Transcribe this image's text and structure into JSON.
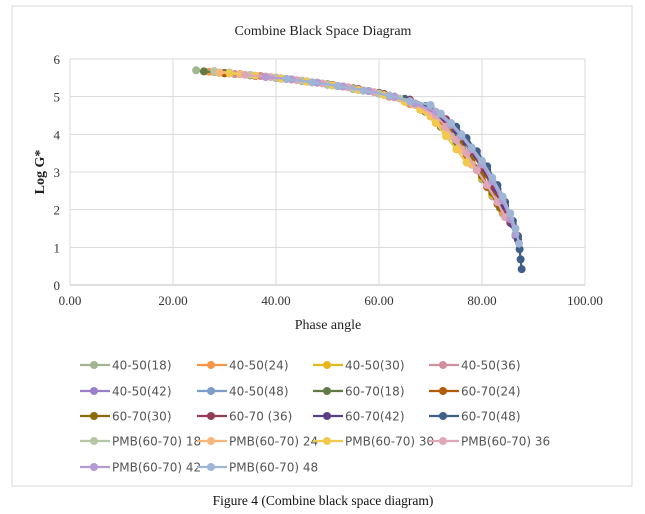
{
  "caption": "Figure 4 (Combine black space diagram)",
  "chart_data": {
    "type": "scatter",
    "title": "Combine Black Space Diagram",
    "xlabel": "Phase angle",
    "ylabel": "Log G*",
    "xlim": [
      0,
      100
    ],
    "ylim": [
      0,
      6
    ],
    "xticks": [
      "0.00",
      "20.00",
      "40.00",
      "60.00",
      "80.00",
      "100.00"
    ],
    "yticks": [
      "0",
      "1",
      "2",
      "3",
      "4",
      "5",
      "6"
    ],
    "grid": true,
    "legend_position": "bottom",
    "series": [
      {
        "name": "40-50(18)",
        "color": "#a2b58e",
        "points": [
          [
            24.5,
            5.7
          ],
          [
            28,
            5.65
          ],
          [
            32,
            5.6
          ],
          [
            36,
            5.55
          ],
          [
            40,
            5.5
          ],
          [
            45,
            5.42
          ],
          [
            50,
            5.32
          ],
          [
            55,
            5.2
          ],
          [
            60,
            5.08
          ],
          [
            65,
            4.9
          ],
          [
            69,
            4.6
          ],
          [
            72,
            4.2
          ],
          [
            75,
            3.75
          ],
          [
            78,
            3.2
          ],
          [
            80,
            2.8
          ],
          [
            82,
            2.35
          ],
          [
            84,
            1.9
          ]
        ]
      },
      {
        "name": "40-50(24)",
        "color": "#f79646",
        "points": [
          [
            27,
            5.66
          ],
          [
            31,
            5.62
          ],
          [
            35,
            5.57
          ],
          [
            40,
            5.5
          ],
          [
            45,
            5.42
          ],
          [
            50,
            5.33
          ],
          [
            55,
            5.22
          ],
          [
            60,
            5.1
          ],
          [
            65,
            4.92
          ],
          [
            69,
            4.62
          ],
          [
            72,
            4.22
          ],
          [
            75,
            3.78
          ],
          [
            78,
            3.25
          ],
          [
            80,
            2.85
          ],
          [
            82,
            2.4
          ],
          [
            84,
            1.95
          ]
        ]
      },
      {
        "name": "40-50(30)",
        "color": "#e8b61e",
        "points": [
          [
            29,
            5.63
          ],
          [
            33,
            5.6
          ],
          [
            37,
            5.55
          ],
          [
            42,
            5.47
          ],
          [
            47,
            5.38
          ],
          [
            52,
            5.28
          ],
          [
            57,
            5.16
          ],
          [
            62,
            5.0
          ],
          [
            66,
            4.8
          ],
          [
            70,
            4.48
          ],
          [
            73,
            4.05
          ],
          [
            76,
            3.6
          ],
          [
            78,
            3.25
          ],
          [
            80,
            2.85
          ],
          [
            82,
            2.4
          ]
        ]
      },
      {
        "name": "40-50(36)",
        "color": "#d38ea0",
        "points": [
          [
            32,
            5.6
          ],
          [
            37,
            5.55
          ],
          [
            42,
            5.47
          ],
          [
            47,
            5.38
          ],
          [
            52,
            5.28
          ],
          [
            57,
            5.16
          ],
          [
            62,
            5.0
          ],
          [
            66,
            4.82
          ],
          [
            70,
            4.5
          ],
          [
            73,
            4.1
          ],
          [
            76,
            3.65
          ],
          [
            79,
            3.1
          ],
          [
            81,
            2.65
          ],
          [
            83,
            2.2
          ],
          [
            84.5,
            1.8
          ]
        ]
      },
      {
        "name": "40-50(42)",
        "color": "#9b7fc8",
        "points": [
          [
            36,
            5.55
          ],
          [
            41,
            5.48
          ],
          [
            46,
            5.4
          ],
          [
            51,
            5.3
          ],
          [
            56,
            5.18
          ],
          [
            61,
            5.05
          ],
          [
            66,
            4.88
          ],
          [
            70,
            4.6
          ],
          [
            73,
            4.25
          ],
          [
            76,
            3.85
          ],
          [
            78,
            3.5
          ],
          [
            80,
            3.1
          ],
          [
            82,
            2.65
          ],
          [
            84,
            2.15
          ],
          [
            85.5,
            1.7
          ],
          [
            86.5,
            1.3
          ]
        ]
      },
      {
        "name": "40-50(48)",
        "color": "#7b9ec8",
        "points": [
          [
            40,
            5.5
          ],
          [
            45,
            5.42
          ],
          [
            50,
            5.32
          ],
          [
            55,
            5.2
          ],
          [
            60,
            5.08
          ],
          [
            65,
            4.92
          ],
          [
            69,
            4.7
          ],
          [
            72,
            4.4
          ],
          [
            75,
            4.05
          ],
          [
            77,
            3.75
          ],
          [
            79,
            3.4
          ],
          [
            81,
            3.0
          ],
          [
            83,
            2.5
          ],
          [
            84.5,
            2.05
          ],
          [
            86,
            1.6
          ],
          [
            87,
            1.2
          ]
        ]
      },
      {
        "name": "60-70(18)",
        "color": "#5f7a45",
        "points": [
          [
            26,
            5.67
          ],
          [
            30,
            5.63
          ],
          [
            35,
            5.57
          ],
          [
            40,
            5.5
          ],
          [
            45,
            5.42
          ],
          [
            50,
            5.32
          ],
          [
            55,
            5.2
          ],
          [
            60,
            5.08
          ],
          [
            65,
            4.9
          ],
          [
            69,
            4.6
          ],
          [
            72,
            4.2
          ],
          [
            75,
            3.75
          ],
          [
            78,
            3.2
          ]
        ]
      },
      {
        "name": "60-70(24)",
        "color": "#b35c0a",
        "points": [
          [
            30,
            5.62
          ],
          [
            35,
            5.57
          ],
          [
            40,
            5.5
          ],
          [
            45,
            5.42
          ],
          [
            50,
            5.33
          ],
          [
            55,
            5.22
          ],
          [
            60,
            5.1
          ],
          [
            65,
            4.93
          ],
          [
            69,
            4.65
          ],
          [
            72,
            4.3
          ],
          [
            75,
            3.85
          ],
          [
            77,
            3.45
          ],
          [
            79,
            3.05
          ],
          [
            81,
            2.6
          ],
          [
            83,
            2.15
          ]
        ]
      },
      {
        "name": "60-70(30)",
        "color": "#8c6a0a",
        "points": [
          [
            33,
            5.6
          ],
          [
            38,
            5.53
          ],
          [
            43,
            5.46
          ],
          [
            48,
            5.37
          ],
          [
            53,
            5.27
          ],
          [
            58,
            5.15
          ],
          [
            63,
            5.0
          ],
          [
            67,
            4.8
          ],
          [
            71,
            4.5
          ],
          [
            74,
            4.1
          ],
          [
            76,
            3.75
          ],
          [
            78,
            3.35
          ],
          [
            80,
            2.9
          ],
          [
            82,
            2.45
          ],
          [
            83.5,
            2.05
          ]
        ]
      },
      {
        "name": "60-70 (36)",
        "color": "#943b55",
        "points": [
          [
            36,
            5.55
          ],
          [
            41,
            5.48
          ],
          [
            46,
            5.4
          ],
          [
            51,
            5.31
          ],
          [
            56,
            5.2
          ],
          [
            61,
            5.07
          ],
          [
            66,
            4.92
          ],
          [
            70,
            4.75
          ],
          [
            73,
            4.4
          ],
          [
            76,
            3.95
          ],
          [
            78,
            3.55
          ],
          [
            80,
            3.1
          ],
          [
            82,
            2.6
          ],
          [
            84,
            2.1
          ],
          [
            85.5,
            1.65
          ]
        ]
      },
      {
        "name": "60-70(42)",
        "color": "#5b3f86",
        "points": [
          [
            40,
            5.5
          ],
          [
            45,
            5.42
          ],
          [
            50,
            5.32
          ],
          [
            55,
            5.21
          ],
          [
            60,
            5.09
          ],
          [
            65,
            4.94
          ],
          [
            69,
            4.72
          ],
          [
            72,
            4.45
          ],
          [
            75,
            4.1
          ],
          [
            77,
            3.8
          ],
          [
            79,
            3.45
          ],
          [
            81,
            3.05
          ],
          [
            83,
            2.55
          ],
          [
            84.5,
            2.1
          ],
          [
            86,
            1.6
          ],
          [
            87,
            1.2
          ]
        ]
      },
      {
        "name": "60-70(48)",
        "color": "#3e5f87",
        "points": [
          [
            45,
            5.42
          ],
          [
            50,
            5.32
          ],
          [
            55,
            5.21
          ],
          [
            60,
            5.09
          ],
          [
            65,
            4.94
          ],
          [
            69,
            4.75
          ],
          [
            72,
            4.5
          ],
          [
            75,
            4.2
          ],
          [
            77,
            3.9
          ],
          [
            79,
            3.55
          ],
          [
            81,
            3.15
          ],
          [
            83,
            2.65
          ],
          [
            84.5,
            2.2
          ],
          [
            86,
            1.7
          ],
          [
            87,
            1.3
          ],
          [
            87.3,
            0.95
          ],
          [
            87.5,
            0.68
          ],
          [
            87.7,
            0.42
          ]
        ]
      },
      {
        "name": "PMB(60-70) 18",
        "color": "#b7c7a6",
        "points": [
          [
            28,
            5.68
          ],
          [
            31,
            5.64
          ],
          [
            35,
            5.58
          ],
          [
            40,
            5.5
          ],
          [
            45,
            5.42
          ],
          [
            50,
            5.32
          ],
          [
            55,
            5.2
          ],
          [
            60,
            5.08
          ],
          [
            64,
            4.95
          ],
          [
            68,
            4.7
          ],
          [
            71,
            4.35
          ],
          [
            74,
            3.95
          ]
        ]
      },
      {
        "name": "PMB(60-70) 24",
        "color": "#f9b67a",
        "points": [
          [
            29,
            5.64
          ],
          [
            33,
            5.6
          ],
          [
            38,
            5.53
          ],
          [
            43,
            5.46
          ],
          [
            48,
            5.37
          ],
          [
            53,
            5.27
          ],
          [
            58,
            5.15
          ],
          [
            63,
            5.0
          ],
          [
            67,
            4.78
          ],
          [
            70,
            4.5
          ],
          [
            73,
            4.1
          ],
          [
            76,
            3.6
          ],
          [
            78,
            3.2
          ]
        ]
      },
      {
        "name": "PMB(60-70) 30",
        "color": "#f2c94c",
        "points": [
          [
            31,
            5.62
          ],
          [
            36,
            5.56
          ],
          [
            41,
            5.48
          ],
          [
            46,
            5.4
          ],
          [
            51,
            5.3
          ],
          [
            56,
            5.18
          ],
          [
            61,
            5.04
          ],
          [
            65,
            4.86
          ],
          [
            68,
            4.65
          ],
          [
            71,
            4.3
          ],
          [
            73,
            3.95
          ],
          [
            75,
            3.6
          ],
          [
            77,
            3.25
          ]
        ]
      },
      {
        "name": "PMB(60-70) 36",
        "color": "#dfa7b6",
        "points": [
          [
            34,
            5.58
          ],
          [
            39,
            5.52
          ],
          [
            44,
            5.44
          ],
          [
            49,
            5.35
          ],
          [
            54,
            5.25
          ],
          [
            59,
            5.12
          ],
          [
            63,
            4.98
          ],
          [
            67,
            4.8
          ],
          [
            71,
            4.5
          ],
          [
            73,
            4.2
          ],
          [
            75,
            3.85
          ],
          [
            77,
            3.5
          ],
          [
            79,
            3.05
          ],
          [
            81,
            2.65
          ],
          [
            83,
            2.2
          ],
          [
            84.5,
            1.8
          ]
        ]
      },
      {
        "name": "PMB(60-70) 42",
        "color": "#b39bd3",
        "points": [
          [
            38,
            5.52
          ],
          [
            43,
            5.46
          ],
          [
            48,
            5.37
          ],
          [
            53,
            5.27
          ],
          [
            58,
            5.15
          ],
          [
            63,
            5.0
          ],
          [
            67,
            4.82
          ],
          [
            71,
            4.6
          ],
          [
            74,
            4.25
          ],
          [
            76,
            3.95
          ],
          [
            78,
            3.6
          ],
          [
            80,
            3.2
          ],
          [
            82,
            2.75
          ],
          [
            84,
            2.25
          ],
          [
            85.5,
            1.75
          ],
          [
            86.5,
            1.35
          ]
        ]
      },
      {
        "name": "PMB(60-70) 48",
        "color": "#9eb5d6",
        "points": [
          [
            42,
            5.47
          ],
          [
            47,
            5.38
          ],
          [
            52,
            5.28
          ],
          [
            57,
            5.16
          ],
          [
            62,
            5.03
          ],
          [
            66,
            4.88
          ],
          [
            70,
            4.78
          ],
          [
            72,
            4.55
          ],
          [
            74,
            4.3
          ],
          [
            76,
            4.0
          ],
          [
            78,
            3.65
          ],
          [
            80,
            3.3
          ],
          [
            82,
            2.85
          ],
          [
            84,
            2.35
          ],
          [
            85.5,
            1.9
          ],
          [
            86.5,
            1.5
          ],
          [
            87.2,
            1.1
          ]
        ]
      }
    ]
  }
}
